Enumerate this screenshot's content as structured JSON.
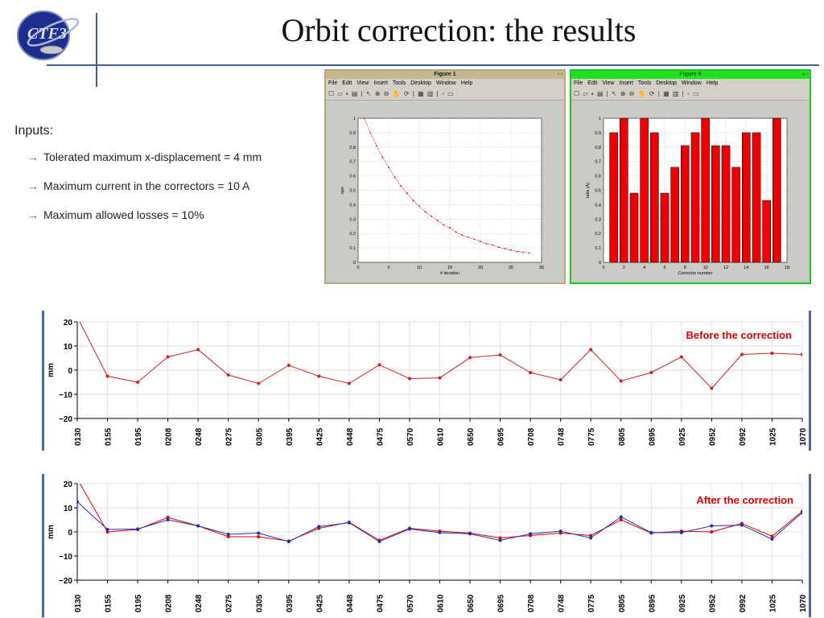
{
  "slide": {
    "title": "Orbit correction: the results",
    "logo_text": "CTF3",
    "inputs_label": "Inputs:",
    "bullets": [
      "Tolerated maximum x-displacement = 4 mm",
      "Maximum current in the correctors = 10 A",
      "Maximum allowed losses = 10%"
    ],
    "arrow_glyph": "→"
  },
  "figure1": {
    "window_title": "Figure 1",
    "menu": [
      "File",
      "Edit",
      "View",
      "Insert",
      "Tools",
      "Desktop",
      "Window",
      "Help"
    ],
    "toolbar_icons": [
      "new-icon",
      "open-icon",
      "save-icon",
      "print-icon",
      "pointer-icon",
      "zoom-in-icon",
      "zoom-out-icon",
      "pan-icon",
      "rotate-icon",
      "datacursor-icon",
      "colorbar-icon",
      "legend-icon",
      "hide-icon",
      "show-icon"
    ]
  },
  "figure6": {
    "window_title": "Figure 6",
    "menu": [
      "File",
      "Edit",
      "View",
      "Insert",
      "Tools",
      "Desktop",
      "Window",
      "Help"
    ]
  },
  "colors": {
    "red_series": "#e00000",
    "blue_series": "#1f2fb0",
    "line_before": "#cc2222",
    "bar_fill": "#ee0000"
  },
  "chart_data": [
    {
      "id": "fig1-chart",
      "type": "line",
      "xlabel": "# iteration",
      "ylabel": "eps",
      "xlim": [
        0,
        30
      ],
      "ylim": [
        0,
        1
      ],
      "xticks": [
        0,
        5,
        10,
        15,
        20,
        25,
        30
      ],
      "yticks": [
        0,
        0.1,
        0.2,
        0.3,
        0.4,
        0.5,
        0.6,
        0.7,
        0.8,
        0.9,
        1
      ],
      "grid": true,
      "x": [
        1,
        2,
        3,
        4,
        5,
        6,
        7,
        8,
        9,
        10,
        11,
        12,
        13,
        14,
        15,
        16,
        17,
        18,
        19,
        20,
        21,
        22,
        23,
        24,
        25,
        26,
        27,
        28
      ],
      "values": [
        1.0,
        0.9,
        0.81,
        0.73,
        0.66,
        0.59,
        0.53,
        0.48,
        0.43,
        0.39,
        0.35,
        0.32,
        0.29,
        0.26,
        0.24,
        0.21,
        0.19,
        0.175,
        0.16,
        0.145,
        0.13,
        0.12,
        0.105,
        0.095,
        0.085,
        0.075,
        0.07,
        0.065
      ]
    },
    {
      "id": "fig6-chart",
      "type": "bar",
      "xlabel": "Corrector number",
      "ylabel": "Iabs (A)",
      "xlim": [
        0,
        18
      ],
      "ylim": [
        0,
        1
      ],
      "xticks": [
        0,
        2,
        4,
        6,
        8,
        10,
        12,
        14,
        16,
        18
      ],
      "yticks": [
        0,
        0.1,
        0.2,
        0.3,
        0.4,
        0.5,
        0.6,
        0.7,
        0.8,
        0.9,
        1
      ],
      "grid": true,
      "categories": [
        1,
        2,
        3,
        4,
        5,
        6,
        7,
        8,
        9,
        10,
        11,
        12,
        13,
        14,
        15,
        16,
        17
      ],
      "values": [
        0.9,
        1.0,
        0.48,
        1.0,
        0.9,
        0.48,
        0.66,
        0.81,
        0.9,
        1.0,
        0.81,
        0.81,
        0.66,
        0.9,
        0.9,
        0.43,
        1.0
      ]
    },
    {
      "id": "before-chart",
      "type": "line",
      "annotation": "Before the correction",
      "ylabel": "mm",
      "ylim": [
        -20,
        20
      ],
      "yticks": [
        -20,
        -10,
        0,
        10,
        20
      ],
      "grid": true,
      "categories": [
        "0130",
        "0155",
        "0195",
        "0208",
        "0248",
        "0275",
        "0305",
        "0395",
        "0425",
        "0448",
        "0475",
        "0570",
        "0610",
        "0650",
        "0695",
        "0708",
        "0748",
        "0775",
        "0805",
        "0895",
        "0925",
        "0952",
        "0992",
        "1025",
        "1070"
      ],
      "series": [
        {
          "values": [
            22,
            -2.5,
            -5,
            5.5,
            8.5,
            -2,
            -5.5,
            2,
            -2.5,
            -5.5,
            2.2,
            -3.5,
            -3.2,
            5.2,
            6.3,
            -1,
            -4,
            8.5,
            -4.5,
            -1,
            5.5,
            -7.5,
            6.5,
            7,
            6.5
          ]
        }
      ]
    },
    {
      "id": "after-chart",
      "type": "line",
      "annotation": "After the correction",
      "ylabel": "mm",
      "ylim": [
        -20,
        20
      ],
      "yticks": [
        -20,
        -10,
        0,
        10,
        20
      ],
      "grid": true,
      "categories": [
        "0130",
        "0155",
        "0195",
        "0208",
        "0248",
        "0275",
        "0305",
        "0395",
        "0425",
        "0448",
        "0475",
        "0570",
        "0610",
        "0650",
        "0695",
        "0708",
        "0748",
        "0775",
        "0805",
        "0895",
        "0925",
        "0952",
        "0992",
        "1025",
        "1070"
      ],
      "series": [
        {
          "values": [
            22,
            0,
            1,
            6,
            2.5,
            -2,
            -2,
            -3.8,
            1.5,
            4,
            -3.5,
            1.5,
            0.3,
            -0.5,
            -2.5,
            -1.5,
            -0.5,
            -1.5,
            5,
            -0.5,
            0.3,
            0,
            3.5,
            -1.8,
            8.5
          ]
        },
        {
          "values": [
            12.5,
            1,
            1.2,
            5,
            2.5,
            -1,
            -0.5,
            -4,
            2.2,
            3.8,
            -4,
            1.2,
            -0.3,
            -0.8,
            -3.5,
            -0.8,
            0.3,
            -2.5,
            6.2,
            -0.3,
            -0.3,
            2.5,
            2.8,
            -3,
            8
          ]
        }
      ]
    }
  ]
}
